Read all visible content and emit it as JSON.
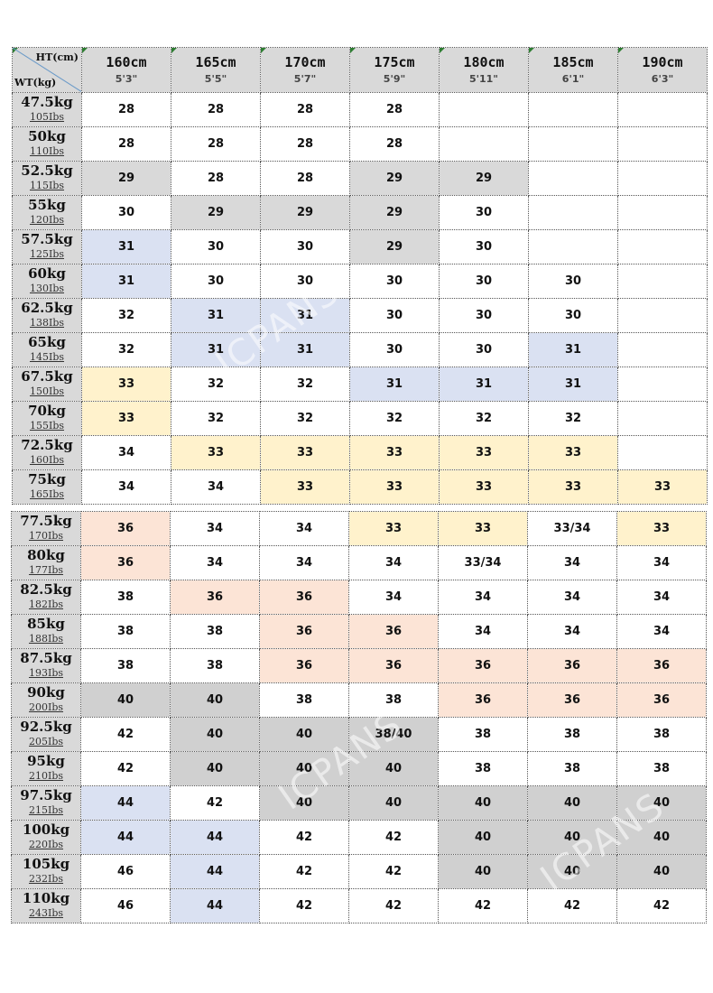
{
  "corner": {
    "ht_label": "HT(cm)",
    "wt_label": "WT(kg)"
  },
  "colors": {
    "header_gray": "#d9d9d9",
    "gray": "#d0d0d0",
    "blue": "#dae1f2",
    "yellow": "#fff2cc",
    "orange": "#fce4d6",
    "white": "#ffffff"
  },
  "columns": [
    {
      "cm": "160cm",
      "ft": "5'3\""
    },
    {
      "cm": "165cm",
      "ft": "5'5\""
    },
    {
      "cm": "170cm",
      "ft": "5'7\""
    },
    {
      "cm": "175cm",
      "ft": "5'9\""
    },
    {
      "cm": "180cm",
      "ft": "5'11\""
    },
    {
      "cm": "185cm",
      "ft": "6'1\""
    },
    {
      "cm": "190cm",
      "ft": "6'3\""
    }
  ],
  "rows_top": [
    {
      "kg": "47.5kg",
      "lbs": "105Ibs",
      "cells": [
        [
          "28",
          "w"
        ],
        [
          "28",
          "w"
        ],
        [
          "28",
          "w"
        ],
        [
          "28",
          "w"
        ],
        [
          "",
          "w"
        ],
        [
          "",
          "w"
        ],
        [
          "",
          "w"
        ]
      ]
    },
    {
      "kg": "50kg",
      "lbs": "110Ibs",
      "cells": [
        [
          "28",
          "w"
        ],
        [
          "28",
          "w"
        ],
        [
          "28",
          "w"
        ],
        [
          "28",
          "w"
        ],
        [
          "",
          "w"
        ],
        [
          "",
          "w"
        ],
        [
          "",
          "w"
        ]
      ]
    },
    {
      "kg": "52.5kg",
      "lbs": "115Ibs",
      "cells": [
        [
          "29",
          "g"
        ],
        [
          "28",
          "w"
        ],
        [
          "28",
          "w"
        ],
        [
          "29",
          "g"
        ],
        [
          "29",
          "g"
        ],
        [
          "",
          "w"
        ],
        [
          "",
          "w"
        ]
      ]
    },
    {
      "kg": "55kg",
      "lbs": "120Ibs",
      "cells": [
        [
          "30",
          "w"
        ],
        [
          "29",
          "g"
        ],
        [
          "29",
          "g"
        ],
        [
          "29",
          "g"
        ],
        [
          "30",
          "w"
        ],
        [
          "",
          "w"
        ],
        [
          "",
          "w"
        ]
      ]
    },
    {
      "kg": "57.5kg",
      "lbs": "125Ibs",
      "cells": [
        [
          "31",
          "b"
        ],
        [
          "30",
          "w"
        ],
        [
          "30",
          "w"
        ],
        [
          "29",
          "g"
        ],
        [
          "30",
          "w"
        ],
        [
          "",
          "w"
        ],
        [
          "",
          "w"
        ]
      ]
    },
    {
      "kg": "60kg",
      "lbs": "130Ibs",
      "cells": [
        [
          "31",
          "b"
        ],
        [
          "30",
          "w"
        ],
        [
          "30",
          "w"
        ],
        [
          "30",
          "w"
        ],
        [
          "30",
          "w"
        ],
        [
          "30",
          "w"
        ],
        [
          "",
          "w"
        ]
      ]
    },
    {
      "kg": "62.5kg",
      "lbs": "138Ibs",
      "cells": [
        [
          "32",
          "w"
        ],
        [
          "31",
          "b"
        ],
        [
          "31",
          "b"
        ],
        [
          "30",
          "w"
        ],
        [
          "30",
          "w"
        ],
        [
          "30",
          "w"
        ],
        [
          "",
          "w"
        ]
      ]
    },
    {
      "kg": "65kg",
      "lbs": "145Ibs",
      "cells": [
        [
          "32",
          "w"
        ],
        [
          "31",
          "b"
        ],
        [
          "31",
          "b"
        ],
        [
          "30",
          "w"
        ],
        [
          "30",
          "w"
        ],
        [
          "31",
          "b"
        ],
        [
          "",
          "w"
        ]
      ]
    },
    {
      "kg": "67.5kg",
      "lbs": "150Ibs",
      "cells": [
        [
          "33",
          "y"
        ],
        [
          "32",
          "w"
        ],
        [
          "32",
          "w"
        ],
        [
          "31",
          "b"
        ],
        [
          "31",
          "b"
        ],
        [
          "31",
          "b"
        ],
        [
          "",
          "w"
        ]
      ]
    },
    {
      "kg": "70kg",
      "lbs": "155Ibs",
      "cells": [
        [
          "33",
          "y"
        ],
        [
          "32",
          "w"
        ],
        [
          "32",
          "w"
        ],
        [
          "32",
          "w"
        ],
        [
          "32",
          "w"
        ],
        [
          "32",
          "w"
        ],
        [
          "",
          "w"
        ]
      ]
    },
    {
      "kg": "72.5kg",
      "lbs": "160Ibs",
      "cells": [
        [
          "34",
          "w"
        ],
        [
          "33",
          "y"
        ],
        [
          "33",
          "y"
        ],
        [
          "33",
          "y"
        ],
        [
          "33",
          "y"
        ],
        [
          "33",
          "y"
        ],
        [
          "",
          "w"
        ]
      ]
    },
    {
      "kg": "75kg",
      "lbs": "165Ibs",
      "cells": [
        [
          "34",
          "w"
        ],
        [
          "34",
          "w"
        ],
        [
          "33",
          "y"
        ],
        [
          "33",
          "y"
        ],
        [
          "33",
          "y"
        ],
        [
          "33",
          "y"
        ],
        [
          "33",
          "y"
        ]
      ]
    }
  ],
  "rows_bottom": [
    {
      "kg": "77.5kg",
      "lbs": "170Ibs",
      "cells": [
        [
          "36",
          "o"
        ],
        [
          "34",
          "w"
        ],
        [
          "34",
          "w"
        ],
        [
          "33",
          "y"
        ],
        [
          "33",
          "y"
        ],
        [
          "33/34",
          "w"
        ],
        [
          "33",
          "y"
        ]
      ]
    },
    {
      "kg": "80kg",
      "lbs": "177Ibs",
      "cells": [
        [
          "36",
          "o"
        ],
        [
          "34",
          "w"
        ],
        [
          "34",
          "w"
        ],
        [
          "34",
          "w"
        ],
        [
          "33/34",
          "w"
        ],
        [
          "34",
          "w"
        ],
        [
          "34",
          "w"
        ]
      ]
    },
    {
      "kg": "82.5kg",
      "lbs": "182Ibs",
      "cells": [
        [
          "38",
          "w"
        ],
        [
          "36",
          "o"
        ],
        [
          "36",
          "o"
        ],
        [
          "34",
          "w"
        ],
        [
          "34",
          "w"
        ],
        [
          "34",
          "w"
        ],
        [
          "34",
          "w"
        ]
      ]
    },
    {
      "kg": "85kg",
      "lbs": "188Ibs",
      "cells": [
        [
          "38",
          "w"
        ],
        [
          "38",
          "w"
        ],
        [
          "36",
          "o"
        ],
        [
          "36",
          "o"
        ],
        [
          "34",
          "w"
        ],
        [
          "34",
          "w"
        ],
        [
          "34",
          "w"
        ]
      ]
    },
    {
      "kg": "87.5kg",
      "lbs": "193Ibs",
      "cells": [
        [
          "38",
          "w"
        ],
        [
          "38",
          "w"
        ],
        [
          "36",
          "o"
        ],
        [
          "36",
          "o"
        ],
        [
          "36",
          "o"
        ],
        [
          "36",
          "o"
        ],
        [
          "36",
          "o"
        ]
      ]
    },
    {
      "kg": "90kg",
      "lbs": "200Ibs",
      "cells": [
        [
          "40",
          "gd"
        ],
        [
          "40",
          "gd"
        ],
        [
          "38",
          "w"
        ],
        [
          "38",
          "w"
        ],
        [
          "36",
          "o"
        ],
        [
          "36",
          "o"
        ],
        [
          "36",
          "o"
        ]
      ]
    },
    {
      "kg": "92.5kg",
      "lbs": "205Ibs",
      "cells": [
        [
          "42",
          "w"
        ],
        [
          "40",
          "gd"
        ],
        [
          "40",
          "gd"
        ],
        [
          "38/40",
          "gd"
        ],
        [
          "38",
          "w"
        ],
        [
          "38",
          "w"
        ],
        [
          "38",
          "w"
        ]
      ]
    },
    {
      "kg": "95kg",
      "lbs": "210Ibs",
      "cells": [
        [
          "42",
          "w"
        ],
        [
          "40",
          "gd"
        ],
        [
          "40",
          "gd"
        ],
        [
          "40",
          "gd"
        ],
        [
          "38",
          "w"
        ],
        [
          "38",
          "w"
        ],
        [
          "38",
          "w"
        ]
      ]
    },
    {
      "kg": "97.5kg",
      "lbs": "215Ibs",
      "cells": [
        [
          "44",
          "b"
        ],
        [
          "42",
          "w"
        ],
        [
          "40",
          "gd"
        ],
        [
          "40",
          "gd"
        ],
        [
          "40",
          "gd"
        ],
        [
          "40",
          "gd"
        ],
        [
          "40",
          "gd"
        ]
      ]
    },
    {
      "kg": "100kg",
      "lbs": "220Ibs",
      "cells": [
        [
          "44",
          "b"
        ],
        [
          "44",
          "b"
        ],
        [
          "42",
          "w"
        ],
        [
          "42",
          "w"
        ],
        [
          "40",
          "gd"
        ],
        [
          "40",
          "gd"
        ],
        [
          "40",
          "gd"
        ]
      ]
    },
    {
      "kg": "105kg",
      "lbs": "232Ibs",
      "cells": [
        [
          "46",
          "w"
        ],
        [
          "44",
          "b"
        ],
        [
          "42",
          "w"
        ],
        [
          "42",
          "w"
        ],
        [
          "40",
          "gd"
        ],
        [
          "40",
          "gd"
        ],
        [
          "40",
          "gd"
        ]
      ]
    },
    {
      "kg": "110kg",
      "lbs": "243Ibs",
      "cells": [
        [
          "46",
          "w"
        ],
        [
          "44",
          "b"
        ],
        [
          "42",
          "w"
        ],
        [
          "42",
          "w"
        ],
        [
          "42",
          "w"
        ],
        [
          "42",
          "w"
        ],
        [
          "42",
          "w"
        ]
      ]
    }
  ],
  "watermark": "ICPANS"
}
